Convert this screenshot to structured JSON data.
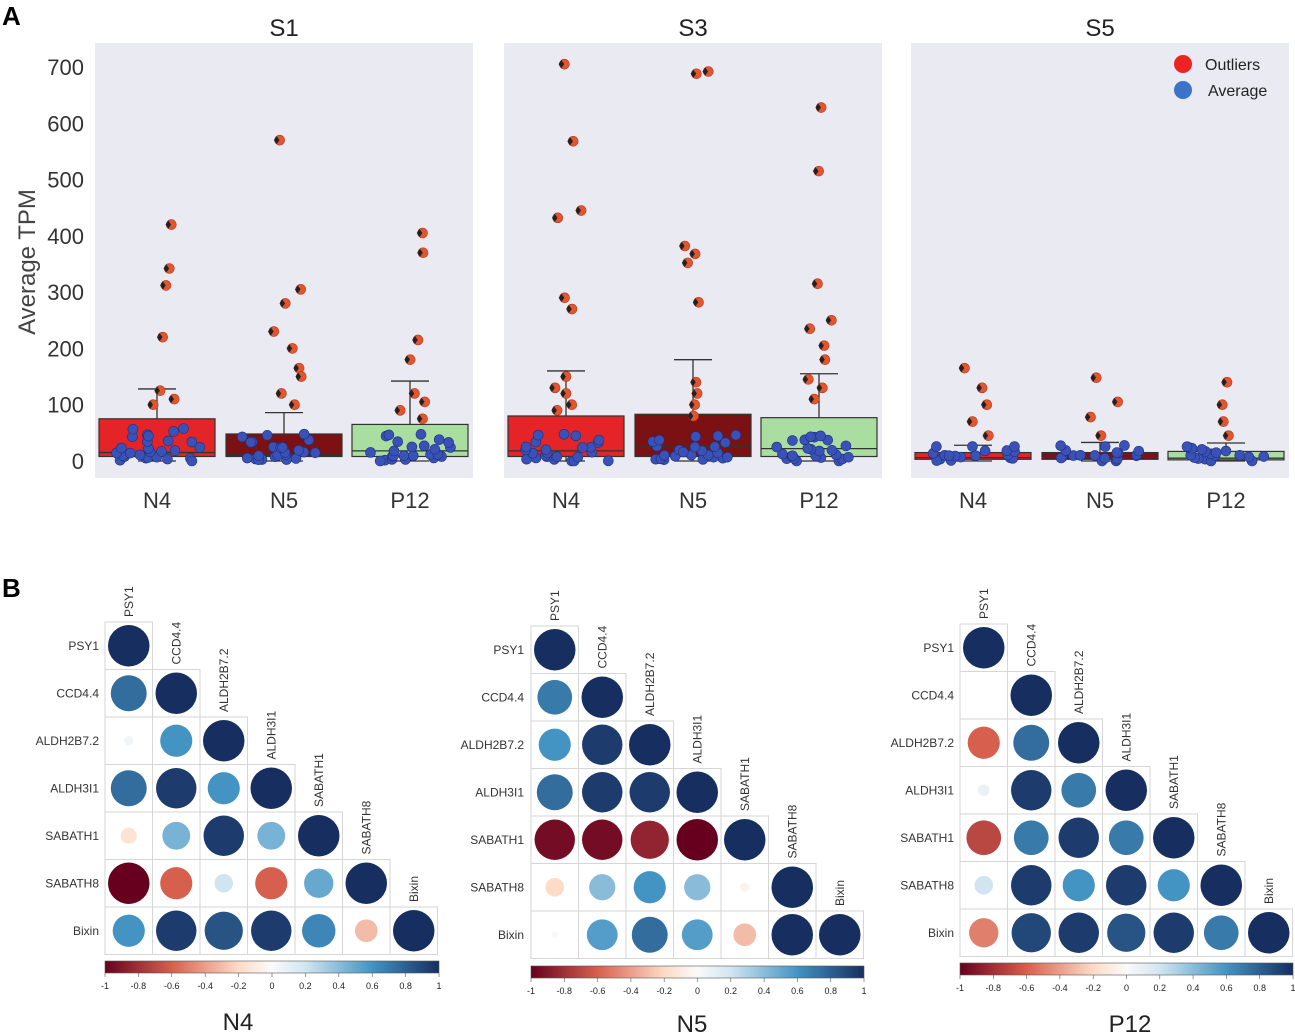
{
  "panels": {
    "a_label": "A",
    "b_label": "B"
  },
  "chart_data": [
    {
      "type": "box+strip",
      "ylabel": "Average TPM",
      "ylim": [
        0,
        720
      ],
      "yticks": [
        0,
        100,
        200,
        300,
        400,
        500,
        600,
        700
      ],
      "legend": {
        "position": "top-right",
        "items": [
          {
            "label": "Outliers",
            "color": "#ee2222"
          },
          {
            "label": "Average",
            "color": "#3b73c8"
          }
        ]
      },
      "subplots": [
        {
          "title": "S1",
          "groups": [
            {
              "name": "N4",
              "color": "#e52427",
              "q1": 8,
              "median": 15,
              "q3": 75,
              "whisker_low": 0,
              "whisker_high": 128,
              "outliers": [
                420,
                342,
                312,
                220,
                125,
                110,
                100
              ],
              "avg_points": [
                2,
                5,
                8,
                12,
                18,
                25,
                35,
                45,
                55
              ]
            },
            {
              "name": "N5",
              "color": "#7b1113",
              "q1": 8,
              "median": 12,
              "q3": 48,
              "whisker_low": 0,
              "whisker_high": 86,
              "outliers": [
                570,
                305,
                280,
                230,
                200,
                165,
                150,
                120,
                100
              ],
              "avg_points": [
                2,
                5,
                8,
                12,
                18,
                25,
                35,
                45
              ]
            },
            {
              "name": "P12",
              "color": "#a9dea0",
              "q1": 8,
              "median": 18,
              "q3": 65,
              "whisker_low": 0,
              "whisker_high": 142,
              "outliers": [
                405,
                370,
                215,
                180,
                120,
                105,
                90,
                75
              ],
              "avg_points": [
                2,
                5,
                8,
                12,
                18,
                25,
                35,
                45
              ]
            }
          ]
        },
        {
          "title": "S3",
          "groups": [
            {
              "name": "N4",
              "color": "#e52427",
              "q1": 8,
              "median": 18,
              "q3": 80,
              "whisker_low": 0,
              "whisker_high": 160,
              "outliers": [
                705,
                568,
                445,
                432,
                290,
                270,
                150,
                130,
                120,
                100,
                90
              ],
              "avg_points": [
                2,
                5,
                8,
                12,
                18,
                25,
                35,
                45
              ]
            },
            {
              "name": "N5",
              "color": "#7b1113",
              "q1": 8,
              "median": 25,
              "q3": 83,
              "whisker_low": 0,
              "whisker_high": 180,
              "outliers": [
                692,
                688,
                382,
                368,
                352,
                282,
                140,
                120,
                100,
                80
              ],
              "avg_points": [
                2,
                5,
                8,
                12,
                18,
                25,
                35,
                45
              ]
            },
            {
              "name": "P12",
              "color": "#a9dea0",
              "q1": 8,
              "median": 22,
              "q3": 77,
              "whisker_low": 0,
              "whisker_high": 155,
              "outliers": [
                628,
                515,
                315,
                250,
                235,
                205,
                180,
                145,
                130,
                110
              ],
              "avg_points": [
                2,
                5,
                8,
                12,
                18,
                25,
                35,
                45
              ]
            }
          ]
        },
        {
          "title": "S5",
          "groups": [
            {
              "name": "N4",
              "color": "#e52427",
              "q1": 3,
              "median": 6,
              "q3": 15,
              "whisker_low": 0,
              "whisker_high": 28,
              "outliers": [
                165,
                130,
                100,
                70,
                45
              ],
              "avg_points": [
                2,
                5,
                8,
                12,
                18,
                25
              ]
            },
            {
              "name": "N5",
              "color": "#7b1113",
              "q1": 3,
              "median": 6,
              "q3": 15,
              "whisker_low": 0,
              "whisker_high": 33,
              "outliers": [
                148,
                105,
                78,
                45
              ],
              "avg_points": [
                2,
                5,
                8,
                12,
                18,
                25
              ]
            },
            {
              "name": "P12",
              "color": "#a9dea0",
              "q1": 2,
              "median": 5,
              "q3": 17,
              "whisker_low": 0,
              "whisker_high": 32,
              "outliers": [
                140,
                100,
                70,
                45
              ],
              "avg_points": [
                2,
                5,
                8,
                12,
                18,
                25
              ]
            }
          ]
        }
      ]
    },
    {
      "type": "heatmap",
      "style": "correlation circles (lower triangle)",
      "genes": [
        "PSY1",
        "CCD4.4",
        "ALDH2B7.2",
        "ALDH3I1",
        "SABATH1",
        "SABATH8",
        "Bixin"
      ],
      "colorbar": {
        "range": [
          -1,
          1
        ],
        "ticks": [
          "-1",
          "-0.8",
          "-0.6",
          "-0.4",
          "-0.2",
          "0",
          "0.2",
          "0.4",
          "0.6",
          "0.8",
          "1"
        ]
      },
      "matrices": [
        {
          "title": "N4",
          "rows": [
            [
              1
            ],
            [
              0.75,
              1
            ],
            [
              0.05,
              0.6,
              1
            ],
            [
              0.75,
              0.95,
              0.6,
              1
            ],
            [
              -0.15,
              0.45,
              0.95,
              0.45,
              1
            ],
            [
              -1,
              -0.6,
              0.2,
              -0.6,
              0.5,
              1
            ],
            [
              0.6,
              0.95,
              0.85,
              0.95,
              0.65,
              -0.3,
              1
            ]
          ]
        },
        {
          "title": "N5",
          "rows": [
            [
              1
            ],
            [
              0.7,
              1
            ],
            [
              0.6,
              0.95,
              1
            ],
            [
              0.75,
              0.95,
              0.95,
              1
            ],
            [
              -0.95,
              -0.95,
              -0.85,
              -1,
              1
            ],
            [
              -0.2,
              0.4,
              0.6,
              0.4,
              -0.05,
              1
            ],
            [
              0.02,
              0.55,
              0.75,
              0.55,
              -0.3,
              1,
              1
            ]
          ]
        },
        {
          "title": "P12",
          "rows": [
            [
              1
            ],
            [
              0,
              1
            ],
            [
              -0.6,
              0.75,
              1
            ],
            [
              0.08,
              0.95,
              0.7,
              1
            ],
            [
              -0.7,
              0.7,
              0.95,
              0.7,
              1
            ],
            [
              0.2,
              0.95,
              0.6,
              0.95,
              0.6,
              1
            ],
            [
              -0.5,
              0.9,
              0.95,
              0.85,
              0.95,
              0.7,
              1
            ]
          ]
        }
      ]
    }
  ]
}
